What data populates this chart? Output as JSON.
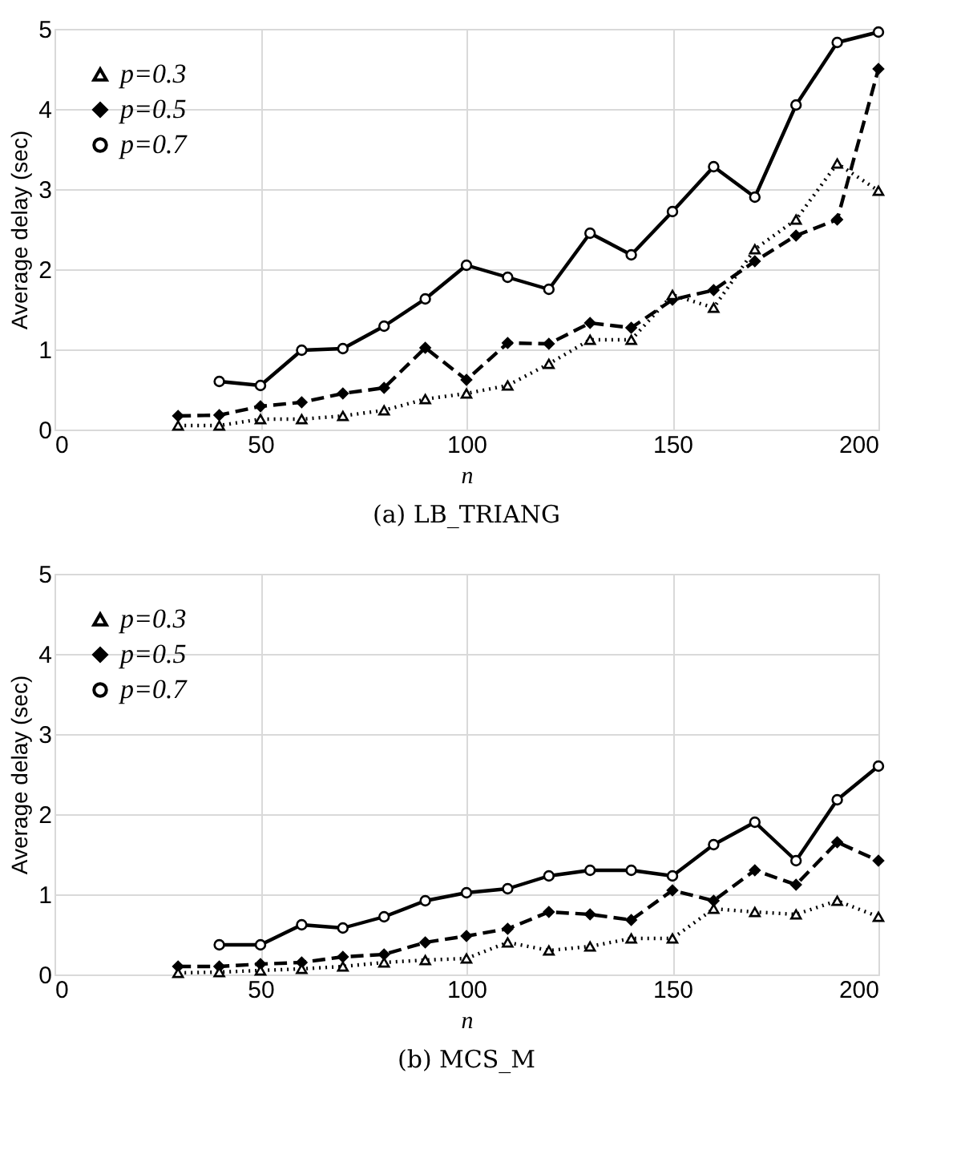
{
  "chart_data": [
    {
      "type": "line",
      "xlabel": "n",
      "ylabel": "Average delay (sec)",
      "xlim": [
        0,
        200
      ],
      "xticks": [
        0,
        50,
        100,
        150,
        200
      ],
      "ylim": [
        0,
        5
      ],
      "yticks": [
        0,
        1,
        2,
        3,
        4,
        5
      ],
      "grid": true,
      "legend": "top left",
      "annotations": [
        "(a) LB_TRIANG"
      ],
      "series": [
        {
          "name": "p=0.3",
          "color": "#000000",
          "marker": "triangle",
          "line_style": "dotted",
          "x": [
            30,
            40,
            50,
            60,
            70,
            80,
            90,
            100,
            110,
            120,
            130,
            140,
            150,
            160,
            170,
            180,
            190,
            200
          ],
          "values": [
            0.05,
            0.05,
            0.13,
            0.13,
            0.17,
            0.24,
            0.38,
            0.45,
            0.55,
            0.82,
            1.12,
            1.12,
            1.68,
            1.52,
            2.25,
            2.62,
            3.32,
            2.98
          ]
        },
        {
          "name": "p=0.5",
          "color": "#000000",
          "marker": "diamond",
          "line_style": "dashed",
          "x": [
            30,
            40,
            50,
            60,
            70,
            80,
            90,
            100,
            110,
            120,
            130,
            140,
            150,
            160,
            170,
            180,
            190,
            200
          ],
          "values": [
            0.17,
            0.18,
            0.29,
            0.34,
            0.45,
            0.52,
            1.02,
            0.62,
            1.08,
            1.07,
            1.33,
            1.27,
            1.62,
            1.74,
            2.1,
            2.42,
            2.62,
            4.5
          ]
        },
        {
          "name": "p=0.7",
          "color": "#000000",
          "marker": "circle",
          "line_style": "solid",
          "x": [
            40,
            50,
            60,
            70,
            80,
            90,
            100,
            110,
            120,
            130,
            140,
            150,
            160,
            170,
            180,
            190,
            200
          ],
          "values": [
            0.6,
            0.55,
            0.99,
            1.01,
            1.29,
            1.63,
            2.05,
            1.9,
            1.75,
            2.45,
            2.18,
            2.72,
            3.28,
            2.9,
            4.05,
            4.83,
            4.96
          ]
        }
      ]
    },
    {
      "type": "line",
      "xlabel": "n",
      "ylabel": "Average delay (sec)",
      "xlim": [
        0,
        200
      ],
      "xticks": [
        0,
        50,
        100,
        150,
        200
      ],
      "ylim": [
        0,
        5
      ],
      "yticks": [
        0,
        1,
        2,
        3,
        4,
        5
      ],
      "grid": true,
      "legend": "top left",
      "annotations": [
        "(b) MCS_M"
      ],
      "series": [
        {
          "name": "p=0.3",
          "color": "#000000",
          "marker": "triangle",
          "line_style": "dotted",
          "x": [
            30,
            40,
            50,
            60,
            70,
            80,
            90,
            100,
            110,
            120,
            130,
            140,
            150,
            160,
            170,
            180,
            190,
            200
          ],
          "values": [
            0.02,
            0.03,
            0.05,
            0.07,
            0.1,
            0.15,
            0.18,
            0.2,
            0.4,
            0.3,
            0.35,
            0.45,
            0.45,
            0.82,
            0.78,
            0.75,
            0.92,
            0.72
          ]
        },
        {
          "name": "p=0.5",
          "color": "#000000",
          "marker": "diamond",
          "line_style": "dashed",
          "x": [
            30,
            40,
            50,
            60,
            70,
            80,
            90,
            100,
            110,
            120,
            130,
            140,
            150,
            160,
            170,
            180,
            190,
            200
          ],
          "values": [
            0.1,
            0.1,
            0.13,
            0.15,
            0.22,
            0.25,
            0.4,
            0.48,
            0.57,
            0.78,
            0.75,
            0.68,
            1.05,
            0.92,
            1.3,
            1.12,
            1.65,
            1.42
          ]
        },
        {
          "name": "p=0.7",
          "color": "#000000",
          "marker": "circle",
          "line_style": "solid",
          "x": [
            40,
            50,
            60,
            70,
            80,
            90,
            100,
            110,
            120,
            130,
            140,
            150,
            160,
            170,
            180,
            190,
            200
          ],
          "values": [
            0.37,
            0.37,
            0.62,
            0.58,
            0.72,
            0.92,
            1.02,
            1.07,
            1.23,
            1.3,
            1.3,
            1.23,
            1.62,
            1.9,
            1.42,
            2.18,
            2.6
          ]
        }
      ]
    }
  ]
}
